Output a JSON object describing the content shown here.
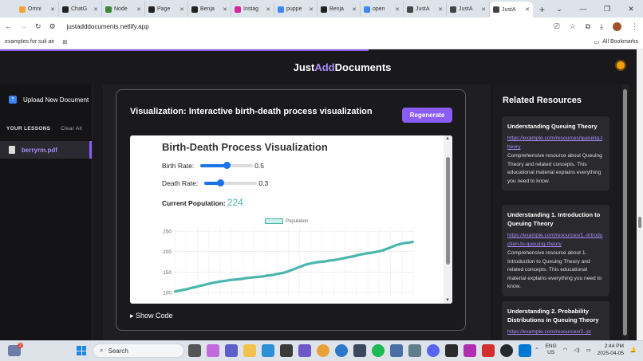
{
  "browser": {
    "tabs": [
      {
        "label": "Omni",
        "color": "#f4a53a"
      },
      {
        "label": "ChatG",
        "color": "#222222"
      },
      {
        "label": "Node",
        "color": "#3c873a"
      },
      {
        "label": "Page",
        "color": "#222222"
      },
      {
        "label": "Benja",
        "color": "#222222"
      },
      {
        "label": "Instag",
        "color": "#d6249f"
      },
      {
        "label": "puppe",
        "color": "#4285f4"
      },
      {
        "label": "Benja",
        "color": "#222222"
      },
      {
        "label": "open",
        "color": "#4285f4"
      },
      {
        "label": "JustA",
        "color": "#444444"
      },
      {
        "label": "JustA",
        "color": "#444444"
      },
      {
        "label": "JustA",
        "color": "#444444",
        "active": true
      }
    ],
    "url": "justadddocuments.netlify.app",
    "bookmark": "examples for suli air",
    "all_bookmarks": "All Bookmarks"
  },
  "app": {
    "logo_part1": "Just",
    "logo_part2": "Add",
    "logo_part3": "Documents",
    "accent": "#8b5cf6"
  },
  "sidebar": {
    "upload_label": "Upload New Document",
    "lessons_title": "YOUR LESSONS",
    "clear_all": "Clear All",
    "files": [
      "berryrm.pdf"
    ]
  },
  "visualization": {
    "title": "Visualization: Interactive birth-death process visualization",
    "regenerate": "Regenerate",
    "show_code": "Show Code",
    "inner_title": "Birth-Death Process Visualization",
    "birth_label": "Birth Rate:",
    "birth_value": "0.5",
    "birth_fraction": 0.5,
    "death_label": "Death Rate:",
    "death_value": "0.3",
    "death_fraction": 0.3,
    "pop_label": "Current Population:",
    "pop_value": "224"
  },
  "chart_data": {
    "type": "line",
    "legend": [
      "Population"
    ],
    "legend_placement": "top-center",
    "line_color": "#4bb6ad",
    "grid": true,
    "ylim": [
      90,
      260
    ],
    "yticks": [
      100,
      150,
      200,
      250
    ],
    "series": [
      {
        "name": "Population",
        "values": [
          102,
          104,
          106,
          108,
          111,
          113,
          116,
          118,
          121,
          123,
          125,
          127,
          128,
          130,
          131,
          132,
          133,
          135,
          136,
          137,
          138,
          139,
          141,
          142,
          144,
          146,
          148,
          151,
          155,
          159,
          163,
          167,
          170,
          172,
          174,
          175,
          176,
          178,
          179,
          181,
          183,
          185,
          187,
          189,
          192,
          194,
          196,
          197,
          199,
          201,
          204,
          208,
          212,
          216,
          219,
          221,
          222,
          224
        ]
      }
    ]
  },
  "resources": {
    "title": "Related Resources",
    "items": [
      {
        "title": "Understanding Queuing Theory",
        "link": "https://example.com/resources/queuing-theory",
        "desc": "Comprehensive resource about Queuing Theory and related concepts. This educational material explains everything you need to know."
      },
      {
        "title": "Understanding 1. Introduction to Queuing Theory",
        "link": "https://example.com/resources/1.-introduction-to-queuing-theory",
        "desc": "Comprehensive resource about 1. Introduction to Queuing Theory and related concepts. This educational material explains everything you need to know."
      },
      {
        "title": "Understanding 2. Probability Distributions in Queuing Theory",
        "link": "https://example.com/resources/2.-pr",
        "desc": ""
      }
    ]
  },
  "taskbar": {
    "search": "Search",
    "notify_badge": "2",
    "lang1": "ENG",
    "lang2": "US",
    "time": "2:44 PM",
    "date": "2025-04-05"
  }
}
